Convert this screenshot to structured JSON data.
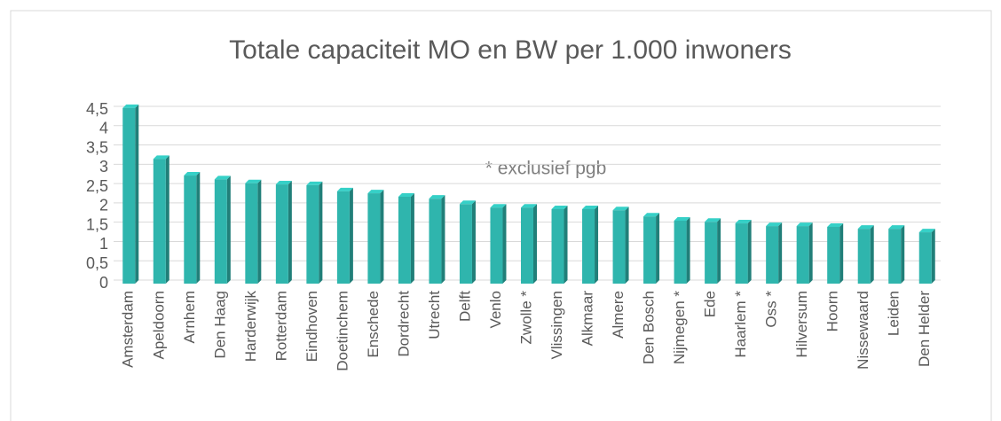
{
  "chart_data": {
    "type": "bar",
    "title": "Totale capaciteit MO en BW per 1.000 inwoners",
    "annotation": "* exclusief pgb",
    "categories": [
      "Amsterdam",
      "Apeldoorn",
      "Arnhem",
      "Den Haag",
      "Harderwijk",
      "Rotterdam",
      "Eindhoven",
      "Doetinchem",
      "Enschede",
      "Dordrecht",
      "Utrecht",
      "Delft",
      "Venlo",
      "Zwolle *",
      "Vlissingen",
      "Alkmaar",
      "Almere",
      "Den Bosch",
      "Nijmegen *",
      "Ede",
      "Haarlem *",
      "Oss *",
      "Hilversum",
      "Hoorn",
      "Nissewaard",
      "Leiden",
      "Den Helder"
    ],
    "values": [
      4.55,
      3.23,
      2.8,
      2.7,
      2.6,
      2.57,
      2.55,
      2.39,
      2.34,
      2.25,
      2.2,
      2.06,
      1.97,
      1.97,
      1.93,
      1.93,
      1.9,
      1.74,
      1.63,
      1.6,
      1.56,
      1.49,
      1.49,
      1.47,
      1.42,
      1.42,
      1.33
    ],
    "color": "#2fb5ad",
    "ylim": [
      0,
      4.5
    ],
    "yticks": [
      0,
      {
        "value": 0.5,
        "label": "0,5"
      },
      1,
      {
        "value": 1.5,
        "label": "1,5"
      },
      2,
      {
        "value": 2.5,
        "label": "2,5"
      },
      3,
      {
        "value": 3.5,
        "label": "3,5"
      },
      4,
      {
        "value": 4.5,
        "label": "4,5"
      }
    ],
    "grid": true
  }
}
